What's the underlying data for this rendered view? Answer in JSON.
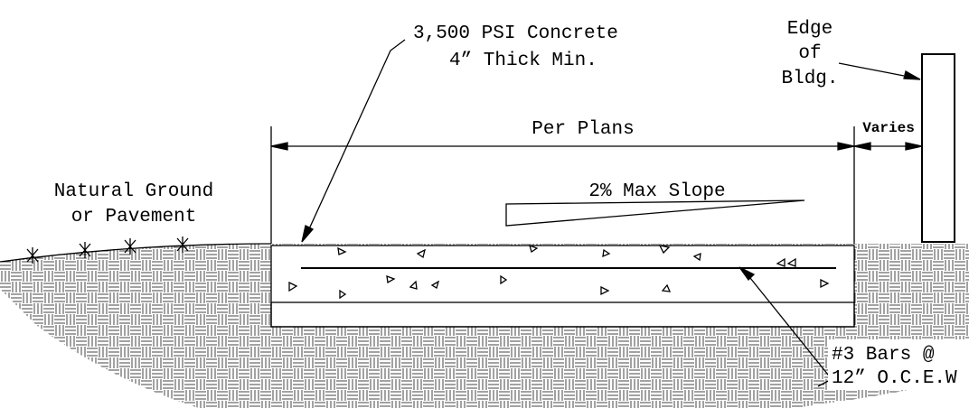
{
  "labels": {
    "concrete": [
      "3,500 PSI Concrete",
      "4” Thick Min."
    ],
    "edge": [
      "Edge",
      "of",
      "Bldg."
    ],
    "per_plans": "Per Plans",
    "varies": "Varies",
    "ground": [
      "Natural Ground",
      "or Pavement"
    ],
    "slope": "2% Max Slope",
    "bars": [
      "#3 Bars @",
      "12” O.C.E.W"
    ]
  }
}
